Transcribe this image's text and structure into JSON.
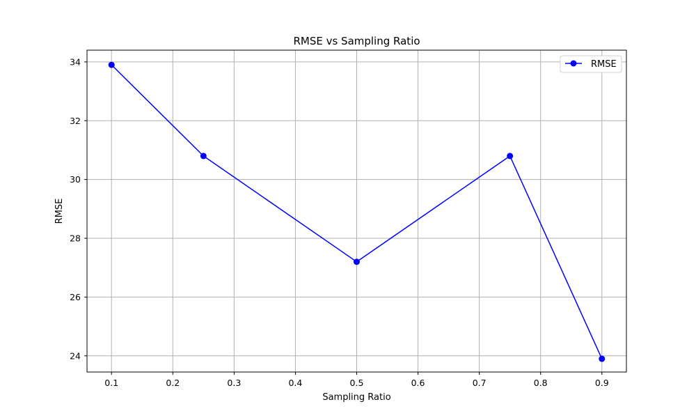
{
  "chart_data": {
    "type": "line",
    "title": "RMSE vs Sampling Ratio",
    "xlabel": "Sampling Ratio",
    "ylabel": "RMSE",
    "xlim": [
      0.06,
      0.94
    ],
    "ylim": [
      23.45,
      34.4
    ],
    "x_ticks": [
      0.1,
      0.2,
      0.3,
      0.4,
      0.5,
      0.6,
      0.7,
      0.8,
      0.9
    ],
    "y_ticks": [
      24,
      26,
      28,
      30,
      32,
      34
    ],
    "grid": true,
    "legend_position": "top-right",
    "series": [
      {
        "name": "RMSE",
        "color": "#0000ff",
        "marker": "circle",
        "x": [
          0.1,
          0.25,
          0.5,
          0.75,
          0.9
        ],
        "y": [
          33.9,
          30.8,
          27.2,
          30.8,
          23.9
        ]
      }
    ]
  }
}
